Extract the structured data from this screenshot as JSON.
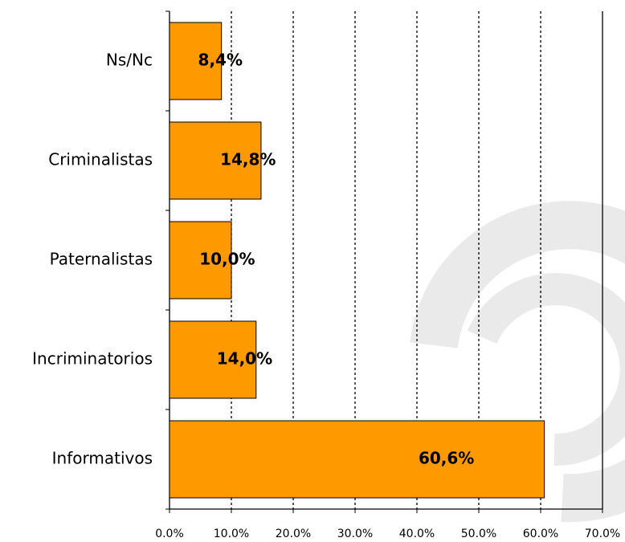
{
  "chart_data": {
    "type": "bar",
    "orientation": "horizontal",
    "categories": [
      "Ns/Nc",
      "Criminalistas",
      "Paternalistas",
      "Incriminatorios",
      "Informativos"
    ],
    "values": [
      8.4,
      14.8,
      10.0,
      14.0,
      60.6
    ],
    "value_labels": [
      "8,4%",
      "14,8%",
      "10,0%",
      "14,0%",
      "60,6%"
    ],
    "color": "#ff9900",
    "xlim": [
      0,
      70
    ],
    "xticks": [
      {
        "value": 0,
        "label": "0.0%"
      },
      {
        "value": 10,
        "label": "10.0%"
      },
      {
        "value": 20,
        "label": "20.0%"
      },
      {
        "value": 30,
        "label": "30.0%"
      },
      {
        "value": 40,
        "label": "40.0%"
      },
      {
        "value": 50,
        "label": "50.0%"
      },
      {
        "value": 60,
        "label": "60.0%"
      },
      {
        "value": 70,
        "label": "70.0%"
      }
    ],
    "grid": true
  }
}
